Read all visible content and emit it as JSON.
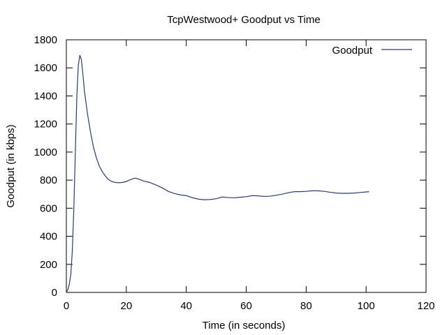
{
  "chart_data": {
    "type": "line",
    "title": "TcpWestwood+ Goodput vs Time",
    "xlabel": "Time (in seconds)",
    "ylabel": "Goodput (in kbps)",
    "xlim": [
      0,
      120
    ],
    "ylim": [
      0,
      1800
    ],
    "xticks": [
      0,
      20,
      40,
      60,
      80,
      100,
      120
    ],
    "yticks": [
      0,
      200,
      400,
      600,
      800,
      1000,
      1200,
      1400,
      1600,
      1800
    ],
    "grid": false,
    "legend_position": "top-right",
    "series": [
      {
        "name": "Goodput",
        "color": "#2b3a7a",
        "x": [
          0,
          0.5,
          1,
          1.5,
          2,
          2.5,
          3,
          3.5,
          4,
          4.5,
          5,
          5.5,
          6,
          7,
          8,
          9,
          10,
          11,
          12,
          13,
          14,
          15,
          16,
          17,
          18,
          19,
          20,
          21,
          22,
          23,
          24,
          25,
          26,
          27,
          28,
          30,
          32,
          34,
          36,
          38,
          40,
          42,
          44,
          46,
          48,
          50,
          52,
          54,
          56,
          58,
          60,
          62,
          64,
          66,
          68,
          70,
          72,
          74,
          76,
          78,
          80,
          82,
          84,
          86,
          88,
          90,
          92,
          94,
          96,
          98,
          100,
          101
        ],
        "y": [
          0,
          20,
          60,
          130,
          300,
          600,
          1000,
          1400,
          1620,
          1690,
          1660,
          1560,
          1440,
          1280,
          1150,
          1040,
          960,
          900,
          860,
          830,
          805,
          792,
          785,
          782,
          782,
          785,
          790,
          800,
          808,
          815,
          808,
          800,
          792,
          788,
          782,
          765,
          745,
          720,
          705,
          695,
          690,
          675,
          665,
          660,
          662,
          668,
          680,
          676,
          674,
          678,
          682,
          690,
          688,
          684,
          686,
          692,
          700,
          710,
          718,
          718,
          720,
          724,
          724,
          720,
          714,
          708,
          706,
          706,
          708,
          712,
          716,
          718
        ]
      }
    ]
  }
}
